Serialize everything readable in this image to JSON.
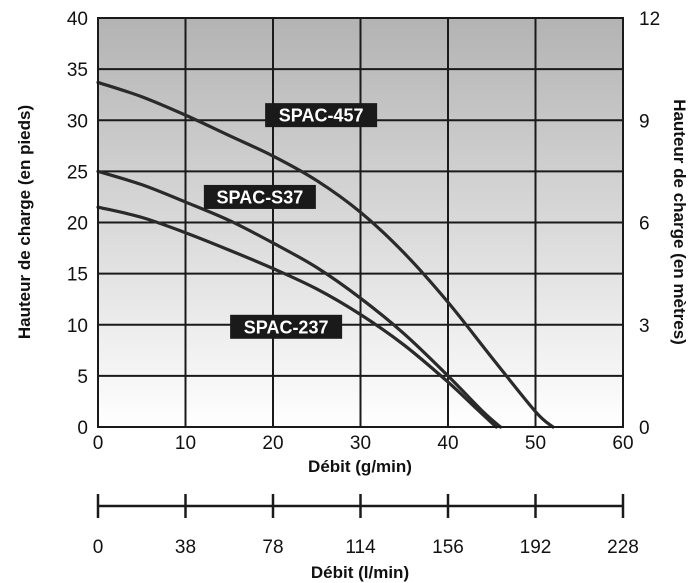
{
  "chart_data": {
    "type": "line",
    "xlabel": "Débit (g/min)",
    "ylabel": "Hauteur de charge (en pieds)",
    "y2label": "Hauteur de charge (en mètres)",
    "x2label": "Débit (l/min)",
    "xlim": [
      0,
      60
    ],
    "ylim": [
      0,
      40
    ],
    "y2lim": [
      0,
      12
    ],
    "xticks": [
      "0",
      "10",
      "20",
      "30",
      "40",
      "50",
      "60"
    ],
    "yticks": [
      "0",
      "5",
      "10",
      "15",
      "20",
      "25",
      "30",
      "35",
      "40"
    ],
    "y2ticks": [
      "0",
      "3",
      "6",
      "9",
      "12"
    ],
    "x2ticks": [
      "0",
      "38",
      "78",
      "114",
      "156",
      "192",
      "228"
    ],
    "grid": true,
    "background": "gradient-grey-top-to-white-bottom",
    "series": [
      {
        "name": "SPAC-457",
        "x": [
          0,
          5,
          10,
          15,
          20,
          25,
          30,
          35,
          40,
          45,
          50,
          52
        ],
        "y": [
          33.7,
          32.3,
          30.5,
          28.5,
          26.5,
          24.1,
          21.0,
          17.0,
          12.2,
          6.8,
          1.5,
          0
        ]
      },
      {
        "name": "SPAC-S37",
        "x": [
          0,
          5,
          10,
          15,
          20,
          25,
          30,
          35,
          40,
          44,
          46
        ],
        "y": [
          25.0,
          23.7,
          22.0,
          20.2,
          18.0,
          15.6,
          12.6,
          9.1,
          5.0,
          1.5,
          0
        ]
      },
      {
        "name": "SPAC-237",
        "x": [
          0,
          5,
          10,
          15,
          20,
          25,
          30,
          35,
          40,
          43,
          45.5
        ],
        "y": [
          21.5,
          20.5,
          19.0,
          17.3,
          15.5,
          13.5,
          11.0,
          8.0,
          4.4,
          2.0,
          0
        ]
      }
    ],
    "labels": [
      {
        "text": "SPAC-457",
        "series": "SPAC-457"
      },
      {
        "text": "SPAC-S37",
        "series": "SPAC-S37"
      },
      {
        "text": "SPAC-237",
        "series": "SPAC-237"
      }
    ],
    "colors": {
      "curve": "#2a2a2a",
      "grid": "#1a1a1a",
      "label_bg": "#1a1a1a",
      "label_text": "#ffffff"
    }
  }
}
